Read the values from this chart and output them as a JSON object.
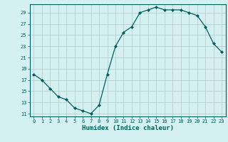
{
  "x": [
    0,
    1,
    2,
    3,
    4,
    5,
    6,
    7,
    8,
    9,
    10,
    11,
    12,
    13,
    14,
    15,
    16,
    17,
    18,
    19,
    20,
    21,
    22,
    23
  ],
  "y": [
    18,
    17,
    15.5,
    14,
    13.5,
    12,
    11.5,
    11,
    12.5,
    18,
    23,
    25.5,
    26.5,
    29,
    29.5,
    30,
    29.5,
    29.5,
    29.5,
    29,
    28.5,
    26.5,
    23.5,
    22
  ],
  "xlabel": "Humidex (Indice chaleur)",
  "xlim": [
    -0.5,
    23.5
  ],
  "ylim": [
    10.5,
    30.5
  ],
  "yticks": [
    11,
    13,
    15,
    17,
    19,
    21,
    23,
    25,
    27,
    29
  ],
  "xticks": [
    0,
    1,
    2,
    3,
    4,
    5,
    6,
    7,
    8,
    9,
    10,
    11,
    12,
    13,
    14,
    15,
    16,
    17,
    18,
    19,
    20,
    21,
    22,
    23
  ],
  "line_color": "#006060",
  "marker_color": "#006060",
  "bg_color": "#d5f0f0",
  "grid_color": "#b0c8c8",
  "axes_color": "#006060",
  "tick_fontsize": 5.0,
  "xlabel_fontsize": 6.5
}
